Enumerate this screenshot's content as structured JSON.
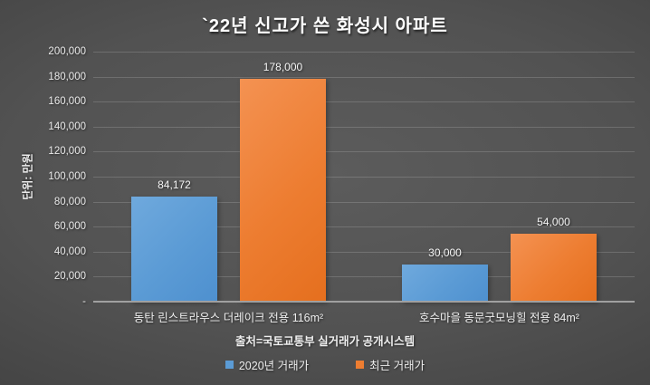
{
  "title": "`22년 신고가 쓴 화성시 아파트",
  "chart_data": {
    "type": "bar",
    "title": "`22년 신고가 쓴 화성시 아파트",
    "categories": [
      "동탄 린스트라우스 더레이크 전용 116m²",
      "호수마을 동문굿모닝힐 전용 84m²"
    ],
    "series": [
      {
        "name": "2020년 거래가",
        "color": "#5B9BD5",
        "color_light": "#6FA9DD",
        "color_dark": "#4E90CF",
        "values": [
          84172,
          30000
        ]
      },
      {
        "name": "최근 거래가",
        "color": "#ED7D31",
        "color_light": "#F49252",
        "color_dark": "#E56F1E",
        "values": [
          178000,
          54000
        ]
      }
    ],
    "data_labels": [
      [
        "84,172",
        "30,000"
      ],
      [
        "178,000",
        "54,000"
      ]
    ],
    "xlabel": "",
    "ylabel": "단위: 만원",
    "ylim": [
      0,
      200000
    ],
    "ytick_step": 20000,
    "yticks": [
      "200,000",
      "180,000",
      "160,000",
      "140,000",
      "120,000",
      "100,000",
      "80,000",
      "60,000",
      "40,000",
      "20,000",
      "-"
    ],
    "grid": true,
    "legend_position": "bottom"
  },
  "source_note": "출처=국토교통부 실거래가 공개시스템",
  "colors": {
    "background_center": "#5C5C5C",
    "background_edge": "#262626",
    "text": "#F2F2F2",
    "gridline": "rgba(255,255,255,0.16)",
    "axis_line": "#A0A0A0",
    "series_blue": "#5B9BD5",
    "series_orange": "#ED7D31"
  }
}
